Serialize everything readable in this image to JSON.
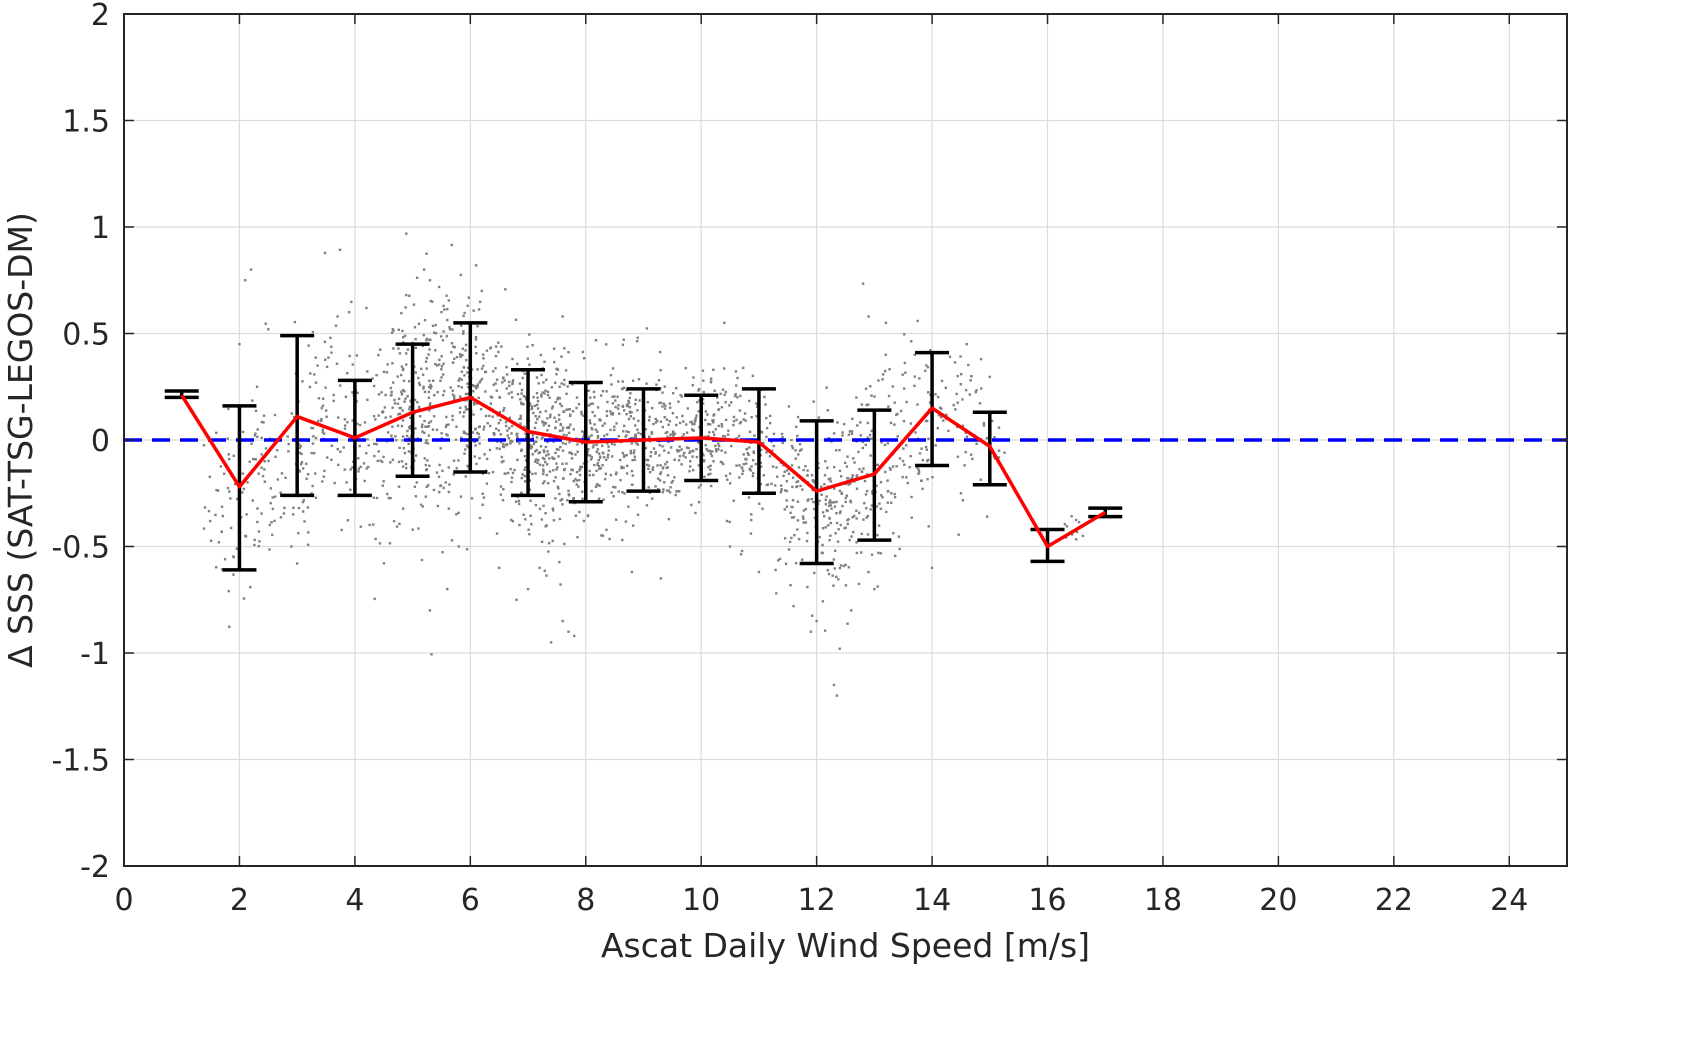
{
  "chart_data": {
    "type": "scatter",
    "title": "",
    "xlabel": "Ascat Daily Wind Speed [m/s]",
    "ylabel": "Δ SSS (SAT-TSG-LEGOS-DM)",
    "xlim": [
      0,
      25
    ],
    "ylim": [
      -2,
      2
    ],
    "xticks": [
      0,
      2,
      4,
      6,
      8,
      10,
      12,
      14,
      16,
      18,
      20,
      22,
      24
    ],
    "yticks": [
      -2,
      -1.5,
      -1,
      -0.5,
      0,
      0.5,
      1,
      1.5,
      2
    ],
    "xtick_labels": [
      "0",
      "2",
      "4",
      "6",
      "8",
      "10",
      "12",
      "14",
      "16",
      "18",
      "20",
      "22",
      "24"
    ],
    "ytick_labels": [
      "-2",
      "-1.5",
      "-1",
      "-0.5",
      "0",
      "0.5",
      "1",
      "1.5",
      "2"
    ],
    "grid": true,
    "reference_line": {
      "y": 0,
      "style": "dashed",
      "color": "#0000ff"
    },
    "series": [
      {
        "kind": "scatter",
        "color": "#808080",
        "clusters": [
          {
            "x": 1.9,
            "y": -0.3,
            "sx": 0.25,
            "sy": 0.22,
            "n": 60
          },
          {
            "x": 2.4,
            "y": -0.25,
            "sx": 0.15,
            "sy": 0.2,
            "n": 40
          },
          {
            "x": 3.0,
            "y": -0.1,
            "sx": 0.25,
            "sy": 0.2,
            "n": 50
          },
          {
            "x": 3.5,
            "y": 0.2,
            "sx": 0.3,
            "sy": 0.3,
            "n": 60
          },
          {
            "x": 4.0,
            "y": 0.05,
            "sx": 0.2,
            "sy": 0.2,
            "n": 50
          },
          {
            "x": 4.6,
            "y": 0.0,
            "sx": 0.25,
            "sy": 0.22,
            "n": 80
          },
          {
            "x": 5.0,
            "y": 0.15,
            "sx": 0.25,
            "sy": 0.25,
            "n": 110
          },
          {
            "x": 5.5,
            "y": 0.2,
            "sx": 0.3,
            "sy": 0.3,
            "n": 120
          },
          {
            "x": 6.0,
            "y": 0.2,
            "sx": 0.3,
            "sy": 0.25,
            "n": 140
          },
          {
            "x": 6.6,
            "y": 0.05,
            "sx": 0.3,
            "sy": 0.22,
            "n": 140
          },
          {
            "x": 7.2,
            "y": 0.0,
            "sx": 0.3,
            "sy": 0.2,
            "n": 150
          },
          {
            "x": 7.7,
            "y": -0.05,
            "sx": 0.3,
            "sy": 0.2,
            "n": 150
          },
          {
            "x": 8.3,
            "y": -0.02,
            "sx": 0.3,
            "sy": 0.18,
            "n": 130
          },
          {
            "x": 8.8,
            "y": 0.0,
            "sx": 0.3,
            "sy": 0.18,
            "n": 120
          },
          {
            "x": 9.4,
            "y": 0.0,
            "sx": 0.3,
            "sy": 0.16,
            "n": 110
          },
          {
            "x": 10.0,
            "y": 0.02,
            "sx": 0.3,
            "sy": 0.15,
            "n": 110
          },
          {
            "x": 10.6,
            "y": 0.0,
            "sx": 0.3,
            "sy": 0.16,
            "n": 90
          },
          {
            "x": 11.2,
            "y": -0.1,
            "sx": 0.3,
            "sy": 0.2,
            "n": 70
          },
          {
            "x": 11.8,
            "y": -0.25,
            "sx": 0.25,
            "sy": 0.2,
            "n": 90
          },
          {
            "x": 12.3,
            "y": -0.3,
            "sx": 0.25,
            "sy": 0.22,
            "n": 100
          },
          {
            "x": 12.8,
            "y": -0.2,
            "sx": 0.25,
            "sy": 0.22,
            "n": 90
          },
          {
            "x": 13.3,
            "y": -0.05,
            "sx": 0.25,
            "sy": 0.22,
            "n": 60
          },
          {
            "x": 13.9,
            "y": 0.1,
            "sx": 0.25,
            "sy": 0.2,
            "n": 50
          },
          {
            "x": 14.5,
            "y": 0.15,
            "sx": 0.2,
            "sy": 0.2,
            "n": 40
          },
          {
            "x": 15.0,
            "y": 0.0,
            "sx": 0.15,
            "sy": 0.1,
            "n": 10
          },
          {
            "x": 16.5,
            "y": -0.42,
            "sx": 0.2,
            "sy": 0.04,
            "n": 10
          }
        ],
        "outliers": [
          [
            2.1,
            0.75
          ],
          [
            2.2,
            0.8
          ],
          [
            2.0,
            0.45
          ],
          [
            1.9,
            -0.55
          ],
          [
            2.5,
            0.52
          ],
          [
            3.0,
            -0.58
          ],
          [
            2.9,
            -0.5
          ],
          [
            3.7,
            0.58
          ],
          [
            3.9,
            0.6
          ],
          [
            4.2,
            0.62
          ],
          [
            5.2,
            0.8
          ],
          [
            5.3,
            0.75
          ],
          [
            5.5,
            0.6
          ],
          [
            5.3,
            -0.8
          ],
          [
            5.6,
            -0.7
          ],
          [
            6.1,
            0.82
          ],
          [
            6.2,
            0.7
          ],
          [
            5.8,
            -0.5
          ],
          [
            6.5,
            -0.6
          ],
          [
            6.8,
            -0.75
          ],
          [
            7.0,
            -0.7
          ],
          [
            7.2,
            -0.6
          ],
          [
            7.6,
            0.58
          ],
          [
            7.4,
            -0.95
          ],
          [
            7.6,
            -0.85
          ],
          [
            7.7,
            -0.9
          ],
          [
            7.8,
            -0.92
          ],
          [
            8.9,
            0.48
          ],
          [
            8.8,
            -0.62
          ],
          [
            9.3,
            -0.65
          ],
          [
            10.4,
            0.55
          ],
          [
            10.5,
            -0.5
          ],
          [
            11.0,
            -0.62
          ],
          [
            11.3,
            -0.72
          ],
          [
            11.6,
            -0.78
          ],
          [
            11.9,
            -0.9
          ],
          [
            12.0,
            -0.85
          ],
          [
            12.4,
            -0.98
          ],
          [
            12.3,
            -1.15
          ],
          [
            12.35,
            -1.2
          ],
          [
            12.6,
            -0.8
          ],
          [
            12.9,
            0.58
          ],
          [
            13.0,
            -0.7
          ],
          [
            13.2,
            0.55
          ],
          [
            13.7,
            0.4
          ],
          [
            13.9,
            0.35
          ],
          [
            14.0,
            -0.6
          ],
          [
            14.6,
            0.45
          ],
          [
            14.5,
            -0.25
          ]
        ]
      },
      {
        "kind": "errorbar",
        "color": "#000000",
        "x": [
          1,
          2,
          3,
          4,
          5,
          6,
          7,
          8,
          9,
          10,
          11,
          12,
          13,
          14,
          15,
          16,
          17
        ],
        "lower": [
          0.2,
          -0.61,
          -0.26,
          -0.26,
          -0.17,
          -0.15,
          -0.26,
          -0.29,
          -0.24,
          -0.19,
          -0.25,
          -0.58,
          -0.47,
          -0.12,
          -0.21,
          -0.57,
          -0.36
        ],
        "upper": [
          0.23,
          0.16,
          0.49,
          0.28,
          0.45,
          0.55,
          0.33,
          0.27,
          0.24,
          0.21,
          0.24,
          0.09,
          0.14,
          0.41,
          0.13,
          -0.42,
          -0.32
        ]
      },
      {
        "kind": "line",
        "color": "#ff0000",
        "x": [
          1,
          2,
          3,
          4,
          5,
          6,
          7,
          8,
          9,
          10,
          11,
          12,
          13,
          14,
          15,
          16,
          17
        ],
        "y": [
          0.21,
          -0.22,
          0.11,
          0.01,
          0.13,
          0.2,
          0.04,
          -0.01,
          0.0,
          0.01,
          -0.01,
          -0.24,
          -0.16,
          0.15,
          -0.03,
          -0.5,
          -0.34
        ]
      }
    ]
  }
}
